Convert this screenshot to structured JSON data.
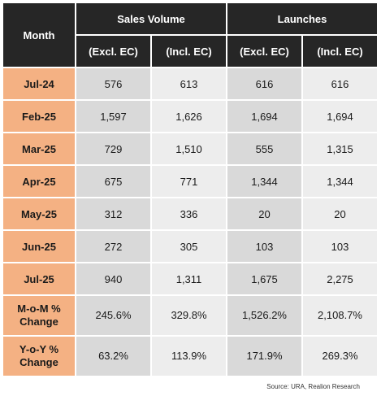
{
  "table": {
    "month_header": "Month",
    "group_headers": [
      "Sales Volume",
      "Launches"
    ],
    "sub_headers": [
      "(Excl. EC)",
      "(Incl. EC)",
      "(Excl. EC)",
      "(Incl. EC)"
    ],
    "rows": [
      {
        "month": "Jul-24",
        "values": [
          "576",
          "613",
          "616",
          "616"
        ]
      },
      {
        "month": "Feb-25",
        "values": [
          "1,597",
          "1,626",
          "1,694",
          "1,694"
        ]
      },
      {
        "month": "Mar-25",
        "values": [
          "729",
          "1,510",
          "555",
          "1,315"
        ]
      },
      {
        "month": "Apr-25",
        "values": [
          "675",
          "771",
          "1,344",
          "1,344"
        ]
      },
      {
        "month": "May-25",
        "values": [
          "312",
          "336",
          "20",
          "20"
        ]
      },
      {
        "month": "Jun-25",
        "values": [
          "272",
          "305",
          "103",
          "103"
        ]
      },
      {
        "month": "Jul-25",
        "values": [
          "940",
          "1,311",
          "1,675",
          "2,275"
        ]
      }
    ],
    "change_rows": [
      {
        "label_line1": "M-o-M %",
        "label_line2": "Change",
        "values": [
          "245.6%",
          "329.8%",
          "1,526.2%",
          "2,108.7%"
        ]
      },
      {
        "label_line1": "Y-o-Y %",
        "label_line2": "Change",
        "values": [
          "63.2%",
          "113.9%",
          "171.9%",
          "269.3%"
        ]
      }
    ]
  },
  "source": "Source: URA, Realion Research",
  "colors": {
    "header_bg": "#262626",
    "month_bg": "#f4b183",
    "cell_bg": "#d9d9d9"
  }
}
